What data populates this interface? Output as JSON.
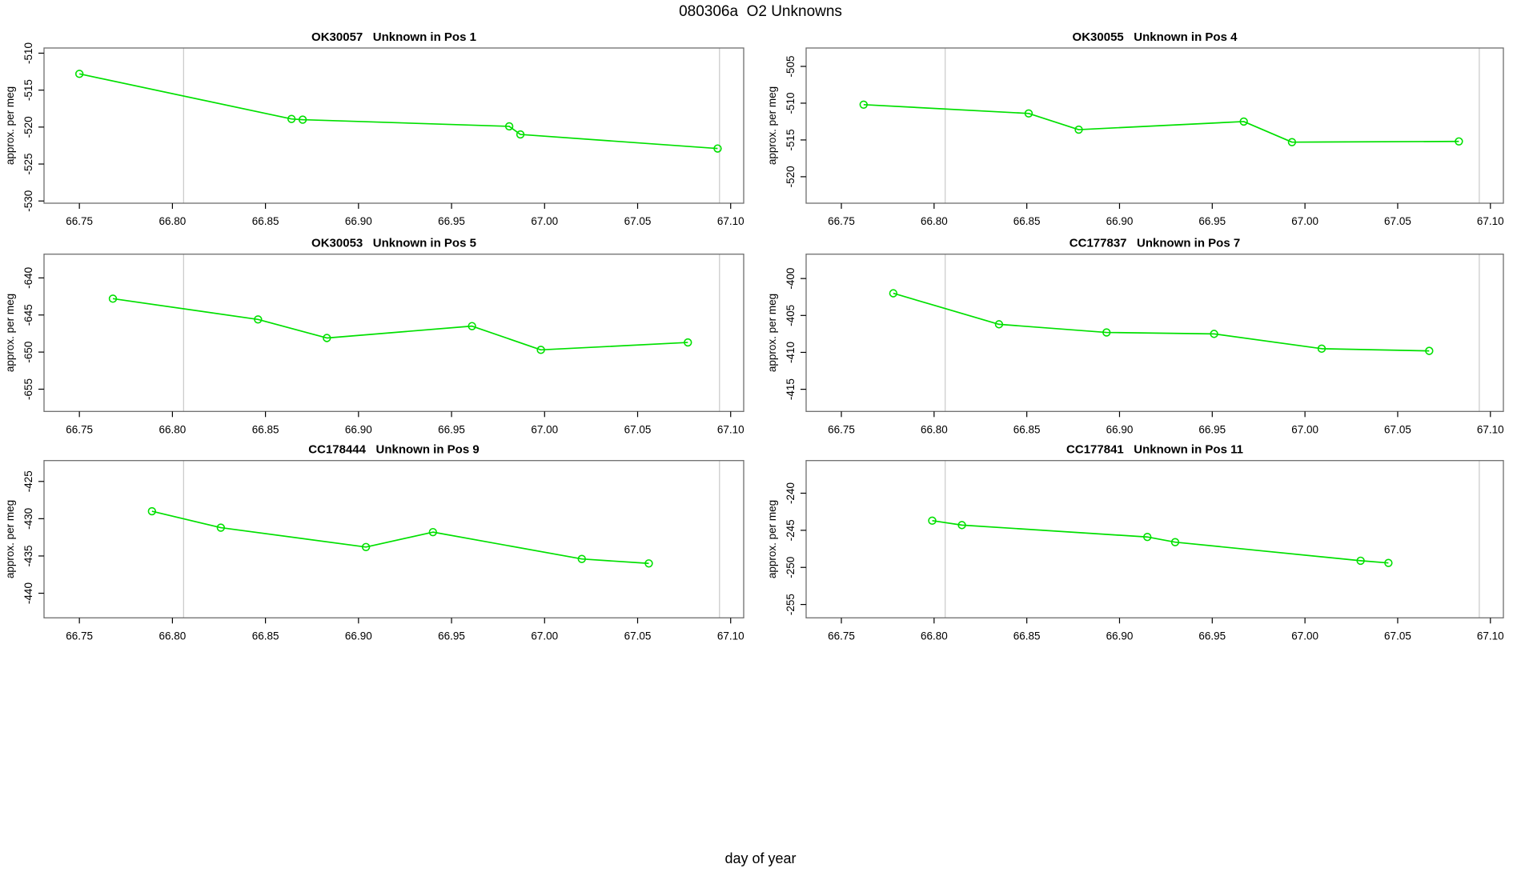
{
  "figure": {
    "title": "080306a  O2 Unknowns",
    "x_axis_title": "day of year"
  },
  "style": {
    "line_color": "#00e000",
    "ref_line_color": "#c9c9c9",
    "box_color": "#6e6e6e",
    "tick_color": "#000000",
    "text_color": "#000000",
    "background": "#ffffff"
  },
  "chart_data": [
    {
      "type": "line",
      "name": "OK30057",
      "subtitle": "Unknown in Pos 1",
      "title": "OK30057   Unknown in Pos 1",
      "xlabel": "day of year",
      "ylabel": "approx. per meg",
      "x": [
        66.75,
        66.864,
        66.87,
        66.981,
        66.987,
        67.093
      ],
      "y": [
        -512.8,
        -518.9,
        -519.0,
        -519.9,
        -521.0,
        -522.9
      ],
      "xlim": [
        66.731,
        67.107
      ],
      "ylim": [
        -530.3,
        -509.3
      ],
      "xticks": [
        66.75,
        66.8,
        66.85,
        66.9,
        66.95,
        67.0,
        67.05,
        67.1
      ],
      "yticks": [
        -530,
        -525,
        -520,
        -515,
        -510
      ],
      "ref_lines_x": [
        66.806,
        67.094
      ],
      "line_color": "#00e000",
      "marker": "open-circle",
      "grid": false,
      "legend": false
    },
    {
      "type": "line",
      "name": "OK30055",
      "subtitle": "Unknown in Pos 4",
      "title": "OK30055   Unknown in Pos 4",
      "xlabel": "day of year",
      "ylabel": "approx. per meg",
      "x": [
        66.762,
        66.851,
        66.878,
        66.967,
        66.993,
        67.083
      ],
      "y": [
        -510.2,
        -511.4,
        -513.6,
        -512.5,
        -515.3,
        -515.2
      ],
      "xlim": [
        66.731,
        67.107
      ],
      "ylim": [
        -523.6,
        -502.5
      ],
      "xticks": [
        66.75,
        66.8,
        66.85,
        66.9,
        66.95,
        67.0,
        67.05,
        67.1
      ],
      "yticks": [
        -520,
        -515,
        -510,
        -505
      ],
      "ref_lines_x": [
        66.806,
        67.094
      ],
      "line_color": "#00e000",
      "marker": "open-circle",
      "grid": false,
      "legend": false
    },
    {
      "type": "line",
      "name": "OK30053",
      "subtitle": "Unknown in Pos 5",
      "title": "OK30053   Unknown in Pos 5",
      "xlabel": "day of year",
      "ylabel": "approx. per meg",
      "x": [
        66.768,
        66.846,
        66.883,
        66.961,
        66.998,
        67.077
      ],
      "y": [
        -642.8,
        -645.6,
        -648.1,
        -646.5,
        -649.7,
        -648.7
      ],
      "xlim": [
        66.731,
        67.107
      ],
      "ylim": [
        -658.0,
        -636.8
      ],
      "xticks": [
        66.75,
        66.8,
        66.85,
        66.9,
        66.95,
        67.0,
        67.05,
        67.1
      ],
      "yticks": [
        -655,
        -650,
        -645,
        -640
      ],
      "ref_lines_x": [
        66.806,
        67.094
      ],
      "line_color": "#00e000",
      "marker": "open-circle",
      "grid": false,
      "legend": false
    },
    {
      "type": "line",
      "name": "CC177837",
      "subtitle": "Unknown in Pos 7",
      "title": "CC177837   Unknown in Pos 7",
      "xlabel": "day of year",
      "ylabel": "approx. per meg",
      "x": [
        66.778,
        66.835,
        66.893,
        66.951,
        67.009,
        67.067
      ],
      "y": [
        -402.0,
        -406.2,
        -407.3,
        -407.5,
        -409.5,
        -409.8
      ],
      "xlim": [
        66.731,
        67.107
      ],
      "ylim": [
        -418.0,
        -396.7
      ],
      "xticks": [
        66.75,
        66.8,
        66.85,
        66.9,
        66.95,
        67.0,
        67.05,
        67.1
      ],
      "yticks": [
        -415,
        -410,
        -405,
        -400
      ],
      "ref_lines_x": [
        66.806,
        67.094
      ],
      "line_color": "#00e000",
      "marker": "open-circle",
      "grid": false,
      "legend": false
    },
    {
      "type": "line",
      "name": "CC178444",
      "subtitle": "Unknown in Pos 9",
      "title": "CC178444   Unknown in Pos 9",
      "xlabel": "day of year",
      "ylabel": "approx. per meg",
      "x": [
        66.789,
        66.826,
        66.904,
        66.94,
        67.02,
        67.056
      ],
      "y": [
        -429.0,
        -431.2,
        -433.8,
        -431.8,
        -435.4,
        -436.0
      ],
      "xlim": [
        66.731,
        67.107
      ],
      "ylim": [
        -443.3,
        -422.2
      ],
      "xticks": [
        66.75,
        66.8,
        66.85,
        66.9,
        66.95,
        67.0,
        67.05,
        67.1
      ],
      "yticks": [
        -440,
        -435,
        -430,
        -425
      ],
      "ref_lines_x": [
        66.806,
        67.094
      ],
      "line_color": "#00e000",
      "marker": "open-circle",
      "grid": false,
      "legend": false
    },
    {
      "type": "line",
      "name": "CC177841",
      "subtitle": "Unknown in Pos 11",
      "title": "CC177841   Unknown in Pos 11",
      "xlabel": "day of year",
      "ylabel": "approx. per meg",
      "x": [
        66.799,
        66.815,
        66.915,
        66.93,
        67.03,
        67.045
      ],
      "y": [
        -243.7,
        -244.3,
        -245.9,
        -246.6,
        -249.1,
        -249.4
      ],
      "xlim": [
        66.731,
        67.107
      ],
      "ylim": [
        -256.8,
        -235.6
      ],
      "xticks": [
        66.75,
        66.8,
        66.85,
        66.9,
        66.95,
        67.0,
        67.05,
        67.1
      ],
      "yticks": [
        -255,
        -250,
        -245,
        -240
      ],
      "ref_lines_x": [
        66.806,
        67.094
      ],
      "line_color": "#00e000",
      "marker": "open-circle",
      "grid": false,
      "legend": false
    }
  ]
}
